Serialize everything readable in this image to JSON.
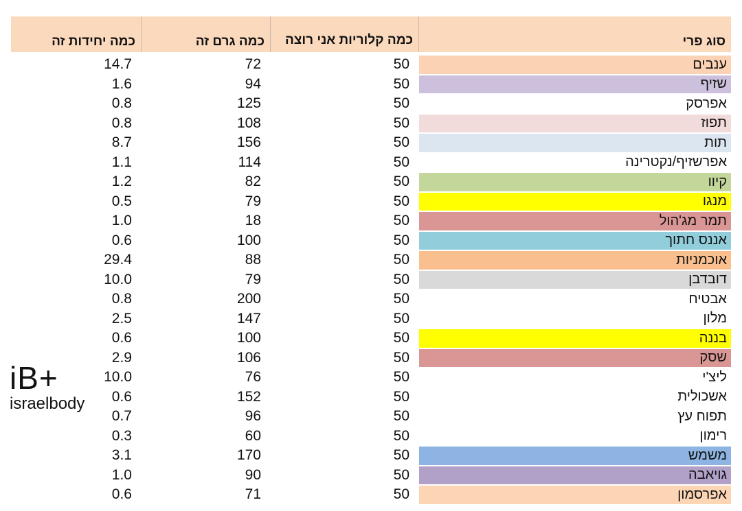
{
  "header": {
    "col_units": "כמה יחידות זה",
    "col_grams": "כמה גרם זה",
    "col_calories": "כמה קלוריות אני רוצה",
    "col_fruit": "סוג פרי"
  },
  "rows": [
    {
      "fruit": "ענבים",
      "calories": "50",
      "grams": "72",
      "units": "14.7",
      "color": "#fbd3b4"
    },
    {
      "fruit": "שזיף",
      "calories": "50",
      "grams": "94",
      "units": "1.6",
      "color": "#ccc0dc"
    },
    {
      "fruit": "אפרסק",
      "calories": "50",
      "grams": "125",
      "units": "0.8",
      "color": "#ffffff"
    },
    {
      "fruit": "תפוז",
      "calories": "50",
      "grams": "108",
      "units": "0.8",
      "color": "#f1dcdb"
    },
    {
      "fruit": "תות",
      "calories": "50",
      "grams": "156",
      "units": "8.7",
      "color": "#dce6f1"
    },
    {
      "fruit": "אפרשזיף/נקטרינה",
      "calories": "50",
      "grams": "114",
      "units": "1.1",
      "color": "#ffffff"
    },
    {
      "fruit": "קיוו",
      "calories": "50",
      "grams": "82",
      "units": "1.2",
      "color": "#c4d79b"
    },
    {
      "fruit": "מנגו",
      "calories": "50",
      "grams": "79",
      "units": "0.5",
      "color": "#ffff00"
    },
    {
      "fruit": "תמר מג'הול",
      "calories": "50",
      "grams": "18",
      "units": "1.0",
      "color": "#da9694"
    },
    {
      "fruit": "אננס חתוך",
      "calories": "50",
      "grams": "100",
      "units": "0.6",
      "color": "#92cddc"
    },
    {
      "fruit": "אוכמניות",
      "calories": "50",
      "grams": "88",
      "units": "29.4",
      "color": "#fabf8f"
    },
    {
      "fruit": "דובדבן",
      "calories": "50",
      "grams": "79",
      "units": "10.0",
      "color": "#d9d9d9"
    },
    {
      "fruit": "אבטיח",
      "calories": "50",
      "grams": "200",
      "units": "0.8",
      "color": "#ffffff"
    },
    {
      "fruit": "מלון",
      "calories": "50",
      "grams": "147",
      "units": "2.5",
      "color": "#ffffff"
    },
    {
      "fruit": "בננה",
      "calories": "50",
      "grams": "100",
      "units": "0.6",
      "color": "#ffff00"
    },
    {
      "fruit": "שסק",
      "calories": "50",
      "grams": "106",
      "units": "2.9",
      "color": "#da9694"
    },
    {
      "fruit": "ליצ'י",
      "calories": "50",
      "grams": "76",
      "units": "10.0",
      "color": "#ffffff"
    },
    {
      "fruit": "אשכולית",
      "calories": "50",
      "grams": "152",
      "units": "0.6",
      "color": "#ffffff"
    },
    {
      "fruit": "תפוח עץ",
      "calories": "50",
      "grams": "96",
      "units": "0.7",
      "color": "#ffffff"
    },
    {
      "fruit": "רימון",
      "calories": "50",
      "grams": "60",
      "units": "0.3",
      "color": "#ffffff"
    },
    {
      "fruit": "משמש",
      "calories": "50",
      "grams": "170",
      "units": "3.1",
      "color": "#8db4e2"
    },
    {
      "fruit": "גויאבה",
      "calories": "50",
      "grams": "90",
      "units": "1.0",
      "color": "#b1a0c7"
    },
    {
      "fruit": "אפרסמון",
      "calories": "50",
      "grams": "71",
      "units": "0.6",
      "color": "#fcd5b4"
    }
  ],
  "logo": {
    "mark": "iB+",
    "text": "israelbody"
  }
}
